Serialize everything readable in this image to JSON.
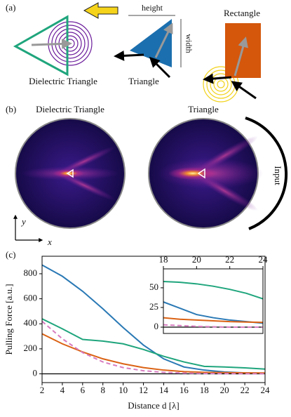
{
  "panel_a": {
    "label": "(a)",
    "height": "height",
    "width": "width",
    "rectangle": "Rectangle",
    "dielectric_triangle": "Dielectric Triangle",
    "triangle": "Triangle"
  },
  "panel_b": {
    "label": "(b)",
    "titles": [
      "Dielectric Triangle",
      "Triangle"
    ],
    "input": "Input",
    "y_axis": "y",
    "x_axis": "x"
  },
  "chart_data": [
    {
      "type": "line",
      "label": "(c)",
      "xlabel": "Distance d [λ]",
      "ylabel": "Pulling Force [a.u.]",
      "x": [
        2,
        4,
        6,
        8,
        10,
        12,
        14,
        16,
        18,
        20,
        22,
        24
      ],
      "xlim": [
        2,
        24
      ],
      "ylim": [
        -70,
        940
      ],
      "xticks": [
        2,
        4,
        6,
        8,
        10,
        12,
        14,
        16,
        18,
        20,
        22,
        24
      ],
      "yticks": [
        0,
        200,
        400,
        600,
        800
      ],
      "hline": 0,
      "series": [
        {
          "color": "#2a79b5",
          "style": "solid",
          "values": [
            870,
            780,
            660,
            520,
            370,
            230,
            120,
            55,
            30,
            15,
            8,
            5
          ]
        },
        {
          "color": "#1fa57c",
          "style": "solid",
          "values": [
            440,
            360,
            275,
            262,
            240,
            195,
            140,
            95,
            60,
            55,
            48,
            38
          ]
        },
        {
          "color": "#db6214",
          "style": "solid",
          "values": [
            320,
            240,
            175,
            120,
            80,
            50,
            30,
            18,
            12,
            10,
            8,
            7
          ]
        },
        {
          "color": "#d77cc0",
          "style": "dashed",
          "values": [
            420,
            280,
            170,
            95,
            50,
            25,
            12,
            6,
            3,
            2,
            1,
            1
          ]
        }
      ]
    },
    {
      "type": "line",
      "x": [
        18,
        19,
        20,
        21,
        22,
        23,
        24
      ],
      "xlim": [
        18,
        24
      ],
      "ylim": [
        -8,
        74
      ],
      "xticks": [
        18,
        20,
        22,
        24
      ],
      "yticks": [
        0,
        25,
        50
      ],
      "hline": 0,
      "series": [
        {
          "color": "#2a79b5",
          "style": "solid",
          "values": [
            32,
            24,
            16,
            12,
            9,
            7,
            5
          ]
        },
        {
          "color": "#1fa57c",
          "style": "solid",
          "values": [
            58,
            57,
            55,
            52,
            48,
            43,
            36
          ]
        },
        {
          "color": "#db6214",
          "style": "solid",
          "values": [
            12,
            10,
            9,
            8,
            7,
            6.5,
            6
          ]
        },
        {
          "color": "#d77cc0",
          "style": "dashed",
          "values": [
            3,
            2,
            1,
            0.5,
            0,
            0,
            0
          ]
        }
      ]
    }
  ]
}
